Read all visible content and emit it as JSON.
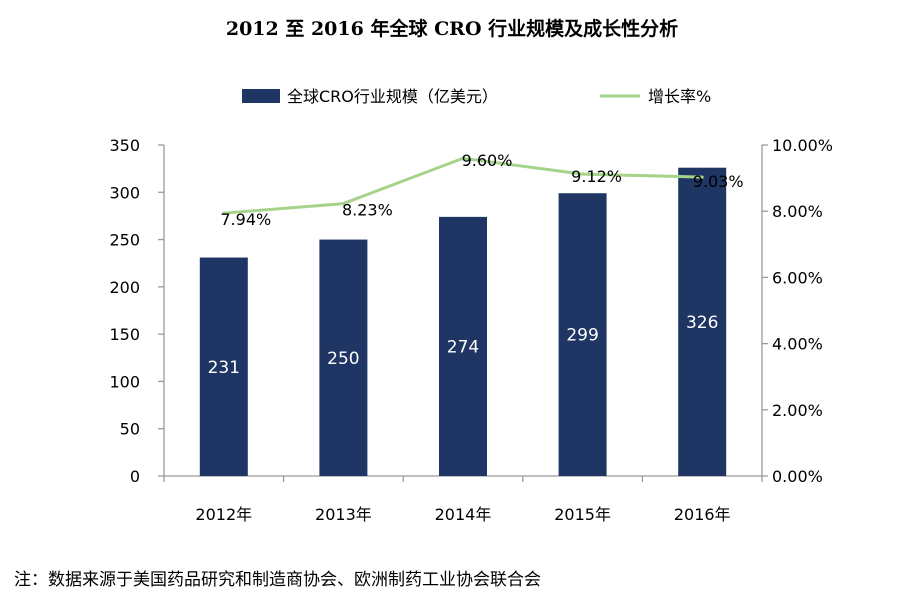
{
  "title": "2012 至 2016 年全球 CRO 行业规模及成长性分析",
  "note": "注：数据来源于美国药品研究和制造商协会、欧洲制药工业协会联合会",
  "colors": {
    "bar": "#1f3564",
    "line": "#a6d38a",
    "axis": "#9a9a9a"
  },
  "chart_data": {
    "type": "bar",
    "categories": [
      "2012年",
      "2013年",
      "2014年",
      "2015年",
      "2016年"
    ],
    "series": [
      {
        "name": "全球CRO行业规模（亿美元）",
        "type": "bar",
        "axis": "left",
        "values": [
          231,
          250,
          274,
          299,
          326
        ],
        "labels": [
          "231",
          "250",
          "274",
          "299",
          "326"
        ]
      },
      {
        "name": "增长率%",
        "type": "line",
        "axis": "right",
        "values": [
          7.94,
          8.23,
          9.6,
          9.12,
          9.03
        ],
        "labels": [
          "7.94%",
          "8.23%",
          "9.60%",
          "9.12%",
          "9.03%"
        ]
      }
    ],
    "y_left": {
      "min": 0,
      "max": 350,
      "ticks": [
        0,
        50,
        100,
        150,
        200,
        250,
        300,
        350
      ],
      "tick_labels": [
        "0",
        "50",
        "100",
        "150",
        "200",
        "250",
        "300",
        "350"
      ]
    },
    "y_right": {
      "min": 0,
      "max": 10,
      "ticks": [
        0,
        2,
        4,
        6,
        8,
        10
      ],
      "tick_labels": [
        "0.00%",
        "2.00%",
        "4.00%",
        "6.00%",
        "8.00%",
        "10.00%"
      ]
    },
    "grid": false,
    "legend_position": "top"
  }
}
